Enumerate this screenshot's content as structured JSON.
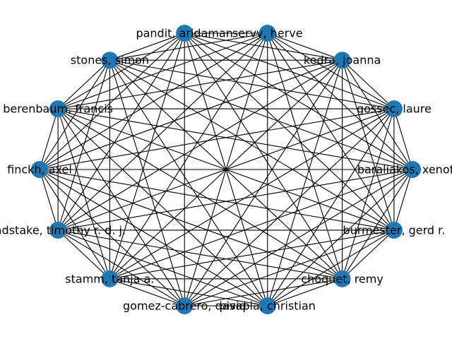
{
  "graph": {
    "type": "network",
    "layout": "circular",
    "complete_graph": true,
    "node_color": "#1f77b4",
    "edge_color": "#000000",
    "label_color": "#000000",
    "nodes": [
      {
        "id": "node-pandit",
        "label": "pandit, aridaman"
      },
      {
        "id": "node-servy",
        "label": "servy, herve"
      },
      {
        "id": "node-kedra",
        "label": "kedra, joanna"
      },
      {
        "id": "node-gossec",
        "label": "gossec, laure"
      },
      {
        "id": "node-baraliakos",
        "label": "baraliakos, xenofon"
      },
      {
        "id": "node-burmester",
        "label": "burmester, gerd r."
      },
      {
        "id": "node-choquet",
        "label": "choquet, remy"
      },
      {
        "id": "node-pisapia",
        "label": "pisapia, christian"
      },
      {
        "id": "node-gomez",
        "label": "gomez-cabrero, david"
      },
      {
        "id": "node-stamm",
        "label": "stamm, tanja a."
      },
      {
        "id": "node-radstake",
        "label": "radstake, timothy r. d. j."
      },
      {
        "id": "node-finckh",
        "label": "finckh, axel"
      },
      {
        "id": "node-berenbaum",
        "label": "berenbaum, francis"
      },
      {
        "id": "node-stones",
        "label": "stones, simon"
      }
    ]
  }
}
